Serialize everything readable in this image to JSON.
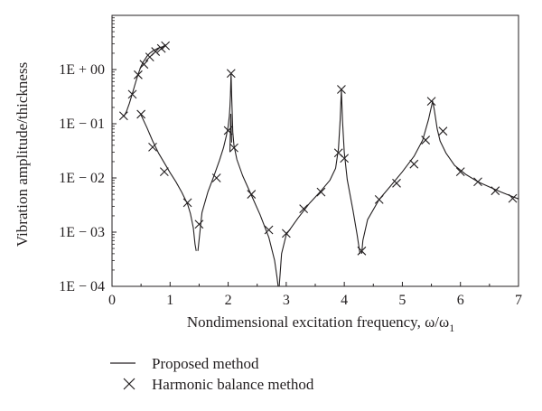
{
  "chart_data": {
    "type": "line",
    "title": "",
    "xlabel": "Nondimensional excitation frequency, ω/ω",
    "xlabel_subscript": "1",
    "ylabel": "Vibration amplitude/thickness",
    "xlim": [
      0,
      7
    ],
    "ylim": [
      0.0001,
      10
    ],
    "yscale": "log",
    "grid": false,
    "legend_position": "bottom-left, below plot",
    "x_ticks": [
      0,
      1,
      2,
      3,
      4,
      5,
      6,
      7
    ],
    "x_tick_labels": [
      "0",
      "1",
      "2",
      "3",
      "4",
      "5",
      "6",
      "7"
    ],
    "y_ticks": [
      0.0001,
      0.001,
      0.01,
      0.1,
      1
    ],
    "y_tick_labels": [
      "1E − 04",
      "1E − 03",
      "1E − 02",
      "1E − 01",
      "1E + 00"
    ],
    "series": [
      {
        "name": "Proposed method",
        "style": "line",
        "color": "#231f20",
        "segments": [
          {
            "x": [
              0.2,
              0.25,
              0.3,
              0.35,
              0.4,
              0.45,
              0.5,
              0.55,
              0.6,
              0.65,
              0.7,
              0.8,
              0.9
            ],
            "y": [
              0.135,
              0.17,
              0.24,
              0.36,
              0.55,
              0.82,
              1.15,
              1.45,
              1.75,
              2.0,
              2.2,
              2.5,
              2.7
            ]
          },
          {
            "x": [
              0.5,
              0.6,
              0.7,
              0.8,
              0.9,
              1.0,
              1.1,
              1.2,
              1.3,
              1.35,
              1.4,
              1.43,
              1.45
            ],
            "y": [
              0.145,
              0.085,
              0.048,
              0.029,
              0.019,
              0.0125,
              0.0085,
              0.0055,
              0.0033,
              0.0022,
              0.0012,
              0.0006,
              0.00045
            ]
          },
          {
            "x": [
              1.48,
              1.55,
              1.65,
              1.75,
              1.85,
              1.92,
              1.97,
              2.0,
              2.02,
              2.03,
              2.04,
              2.05,
              2.06,
              2.07,
              2.08,
              2.1,
              2.15,
              2.25,
              2.4,
              2.55,
              2.7,
              2.8,
              2.84,
              2.86
            ],
            "y": [
              0.00045,
              0.0023,
              0.0055,
              0.0105,
              0.021,
              0.036,
              0.06,
              0.09,
              0.14,
              0.2,
              0.33,
              0.85,
              0.35,
              0.15,
              0.07,
              0.04,
              0.022,
              0.011,
              0.0048,
              0.0021,
              0.0008,
              0.0003,
              0.00015,
              0.0001
            ]
          },
          {
            "x": [
              2.03,
              2.045,
              2.06
            ],
            "y": [
              0.03,
              0.15,
              0.045
            ]
          },
          {
            "x": [
              2.88,
              2.92,
              3.0,
              3.2,
              3.4,
              3.6,
              3.75,
              3.85,
              3.9,
              3.93,
              3.95,
              3.97,
              4.0,
              4.05,
              4.15,
              4.22,
              4.27
            ],
            "y": [
              0.0001,
              0.0004,
              0.0009,
              0.0018,
              0.0034,
              0.0058,
              0.009,
              0.015,
              0.035,
              0.12,
              0.42,
              0.11,
              0.03,
              0.0093,
              0.0025,
              0.0009,
              0.0004
            ]
          },
          {
            "x": [
              4.3,
              4.32,
              4.4,
              4.6,
              4.8,
              5.0,
              5.2,
              5.35,
              5.45,
              5.52,
              5.55,
              5.6,
              5.65,
              5.75,
              5.9,
              6.1,
              6.3,
              6.5,
              6.7,
              6.9,
              7.0
            ],
            "y": [
              0.0004,
              0.0007,
              0.0017,
              0.004,
              0.0072,
              0.013,
              0.025,
              0.05,
              0.12,
              0.26,
              0.18,
              0.08,
              0.048,
              0.029,
              0.017,
              0.0115,
              0.0085,
              0.0068,
              0.0055,
              0.0045,
              0.0041
            ]
          }
        ]
      },
      {
        "name": "Harmonic balance method",
        "style": "markers",
        "marker": "x",
        "color": "#231f20",
        "x": [
          0.2,
          0.35,
          0.45,
          0.55,
          0.65,
          0.75,
          0.85,
          0.92,
          0.5,
          0.7,
          0.9,
          1.3,
          1.5,
          1.8,
          2.0,
          2.05,
          2.1,
          2.4,
          2.7,
          3.0,
          3.3,
          3.6,
          3.9,
          3.95,
          4.0,
          4.3,
          4.6,
          4.9,
          5.2,
          5.4,
          5.5,
          5.7,
          6.0,
          6.3,
          6.6,
          6.9
        ],
        "y": [
          0.14,
          0.35,
          0.8,
          1.25,
          1.7,
          2.15,
          2.45,
          2.75,
          0.15,
          0.037,
          0.013,
          0.0035,
          0.0014,
          0.01,
          0.075,
          0.85,
          0.036,
          0.005,
          0.0011,
          0.00095,
          0.0027,
          0.0055,
          0.029,
          0.43,
          0.023,
          0.00045,
          0.004,
          0.008,
          0.018,
          0.05,
          0.26,
          0.073,
          0.013,
          0.0085,
          0.0058,
          0.0042
        ]
      }
    ]
  }
}
